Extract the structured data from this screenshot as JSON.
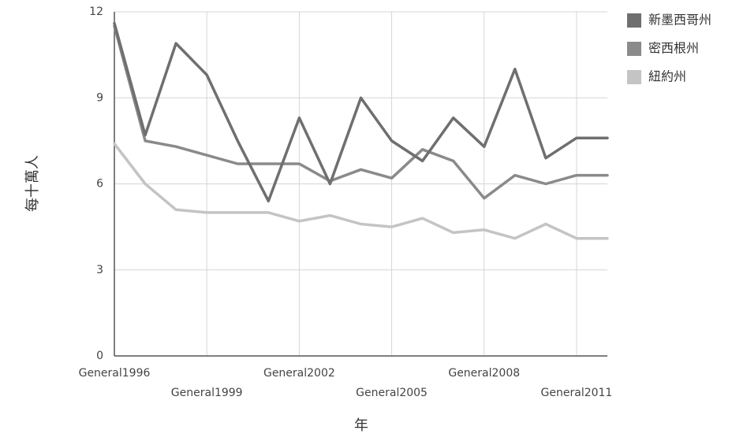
{
  "chart_data": {
    "type": "line",
    "x": [
      1996,
      1997,
      1998,
      1999,
      2000,
      2001,
      2002,
      2003,
      2004,
      2005,
      2006,
      2007,
      2008,
      2009,
      2010,
      2011,
      2012
    ],
    "x_tick_labels": [
      {
        "year": 1996,
        "label": "General1996"
      },
      {
        "year": 1999,
        "label": "General1999"
      },
      {
        "year": 2002,
        "label": "General2002"
      },
      {
        "year": 2005,
        "label": "General2005"
      },
      {
        "year": 2008,
        "label": "General2008"
      },
      {
        "year": 2011,
        "label": "General2011"
      }
    ],
    "y_ticks": [
      "0",
      "3",
      "6",
      "9",
      "12"
    ],
    "ylim": [
      0,
      12
    ],
    "xlabel": "年",
    "ylabel": "每十萬人",
    "grid": true,
    "legend_position": "right",
    "series": [
      {
        "name": "新墨西哥州",
        "color": "#6f6f6f",
        "values": [
          11.6,
          7.7,
          10.9,
          9.8,
          7.5,
          5.4,
          8.3,
          6.0,
          9.0,
          7.5,
          6.8,
          8.3,
          7.3,
          10.0,
          6.9,
          7.6,
          7.6
        ]
      },
      {
        "name": "密西根州",
        "color": "#8a8a8a",
        "values": [
          11.5,
          7.5,
          7.3,
          7.0,
          6.7,
          6.7,
          6.7,
          6.1,
          6.5,
          6.2,
          7.2,
          6.8,
          5.5,
          6.3,
          6.0,
          6.3,
          6.3
        ]
      },
      {
        "name": "紐約州",
        "color": "#c4c4c4",
        "values": [
          7.4,
          6.0,
          5.1,
          5.0,
          5.0,
          5.0,
          4.7,
          4.9,
          4.6,
          4.5,
          4.8,
          4.3,
          4.4,
          4.1,
          4.6,
          4.1,
          4.1
        ]
      }
    ]
  }
}
